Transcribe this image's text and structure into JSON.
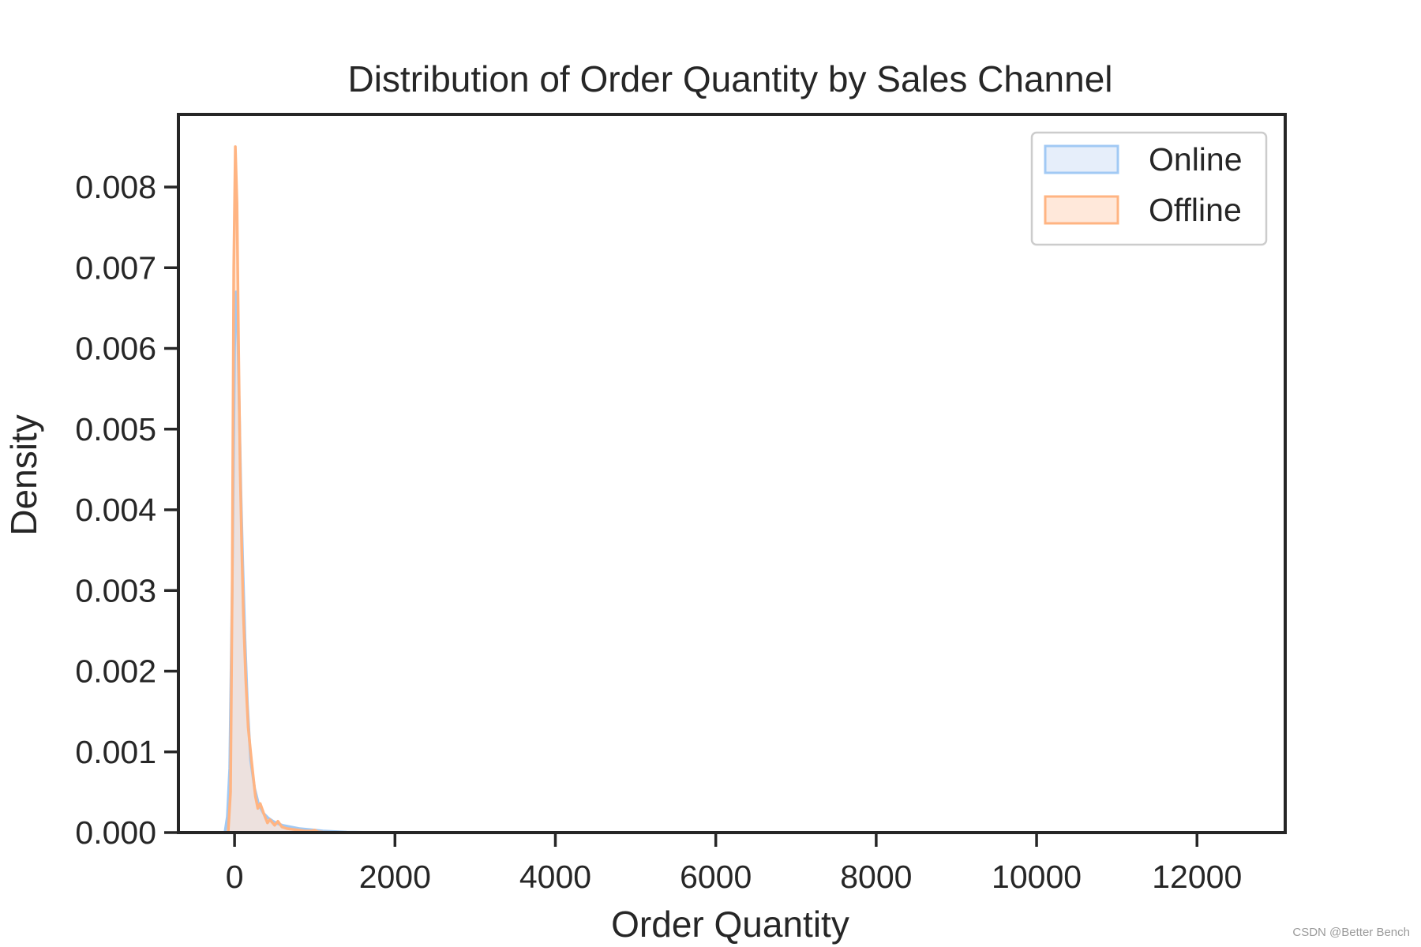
{
  "chart_data": {
    "type": "area",
    "title": "Distribution of Order Quantity by Sales Channel",
    "xlabel": "Order Quantity",
    "ylabel": "Density",
    "xlim": [
      -700,
      13100
    ],
    "ylim": [
      0,
      0.0089
    ],
    "xticks": [
      0,
      2000,
      4000,
      6000,
      8000,
      10000,
      12000
    ],
    "yticks": [
      0.0,
      0.001,
      0.002,
      0.003,
      0.004,
      0.005,
      0.006,
      0.007,
      0.008
    ],
    "ytick_labels": [
      "0.000",
      "0.001",
      "0.002",
      "0.003",
      "0.004",
      "0.005",
      "0.006",
      "0.007",
      "0.008"
    ],
    "grid": false,
    "legend_position": "top-right",
    "series": [
      {
        "name": "Online",
        "line_color": "#a1c9f4",
        "fill_color": "#e6eefa",
        "x": [
          -120,
          -90,
          -60,
          -30,
          0,
          20,
          40,
          60,
          80,
          100,
          130,
          160,
          200,
          250,
          300,
          360,
          420,
          480,
          540,
          600,
          700,
          800,
          900,
          1000,
          1100,
          1200,
          1300,
          1400,
          1600,
          1800
        ],
        "y": [
          0,
          0.0002,
          0.0008,
          0.003,
          0.006,
          0.0067,
          0.0062,
          0.0052,
          0.0042,
          0.0034,
          0.0024,
          0.0016,
          0.0009,
          0.00055,
          0.00035,
          0.00024,
          0.00018,
          0.00014,
          0.00011,
          9e-05,
          7e-05,
          5e-05,
          4e-05,
          3e-05,
          2e-05,
          1.5e-05,
          1e-05,
          5e-06,
          2e-06,
          0
        ]
      },
      {
        "name": "Offline",
        "line_color": "#ffb482",
        "fill_color": "#ffe8da",
        "x": [
          -80,
          -50,
          -30,
          -10,
          10,
          30,
          50,
          70,
          90,
          110,
          140,
          170,
          210,
          260,
          290,
          320,
          370,
          410,
          440,
          500,
          540,
          590,
          650,
          720,
          800,
          880,
          960,
          1000,
          1040,
          1100,
          1200,
          1400
        ],
        "y": [
          0,
          0.0005,
          0.003,
          0.007,
          0.0085,
          0.0078,
          0.006,
          0.0045,
          0.0035,
          0.0027,
          0.0019,
          0.0013,
          0.0009,
          0.00045,
          0.0003,
          0.00036,
          0.00022,
          0.00012,
          0.00016,
          9e-05,
          0.00014,
          7e-05,
          5e-05,
          4e-05,
          3e-05,
          2e-05,
          2e-05,
          3e-05,
          1e-05,
          5e-06,
          2e-06,
          0
        ]
      }
    ]
  },
  "watermark": "CSDN @Better Bench"
}
